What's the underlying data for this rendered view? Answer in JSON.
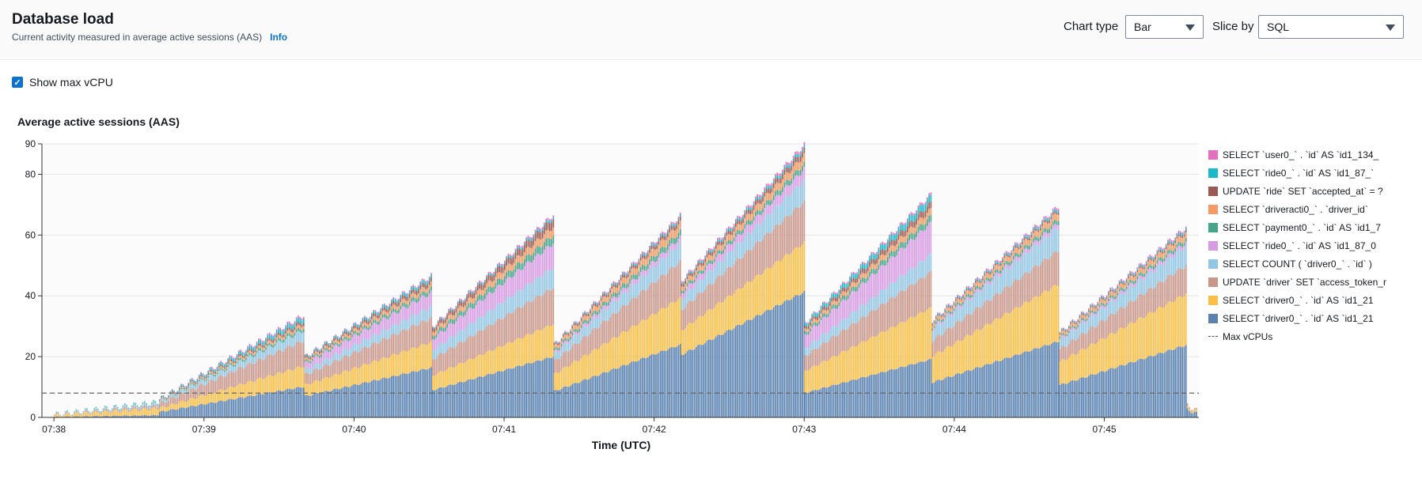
{
  "header": {
    "title": "Database load",
    "subtitle": "Current activity measured in average active sessions (AAS)",
    "info_link": "Info",
    "chart_type_label": "Chart type",
    "chart_type_value": "Bar",
    "slice_by_label": "Slice by",
    "slice_by_value": "SQL"
  },
  "options": {
    "show_max_vcpu_label": "Show max vCPU",
    "show_max_vcpu_checked": true
  },
  "colors": {
    "accent": "#0972d3",
    "max_vcpu_line": "#666666"
  },
  "chart_data": {
    "type": "bar",
    "stacked": true,
    "title": "Average active sessions (AAS)",
    "xlabel": "Time (UTC)",
    "ylabel": "",
    "ylim": [
      0,
      90
    ],
    "yticks": [
      0,
      20,
      40,
      60,
      80,
      90
    ],
    "xticks": [
      "07:38",
      "07:39",
      "07:40",
      "07:41",
      "07:42",
      "07:43",
      "07:44",
      "07:45"
    ],
    "xlim_minutes": [
      -0.08,
      7.63
    ],
    "grid": true,
    "legend_position": "right",
    "max_vcpus": 8,
    "max_vcpus_label": "Max vCPUs",
    "series": [
      {
        "name": "SELECT `driver0_` . `id` AS `id1_21",
        "color": "#5a82b0"
      },
      {
        "name": "SELECT `driver0_` . `id` AS `id1_21",
        "color": "#fbbf47"
      },
      {
        "name": "UPDATE `driver` SET `access_token_r",
        "color": "#c9968a"
      },
      {
        "name": "SELECT COUNT ( `driver0_` . `id` )",
        "color": "#92c6e3"
      },
      {
        "name": "SELECT `ride0_` . `id` AS `id1_87_0",
        "color": "#d69be3"
      },
      {
        "name": "SELECT `payment0_` . `id` AS `id1_7",
        "color": "#47a389"
      },
      {
        "name": "SELECT `driveracti0_` . `driver_id`",
        "color": "#f59a62"
      },
      {
        "name": "UPDATE `ride` SET `accepted_at` = ?",
        "color": "#9b5b55"
      },
      {
        "name": "SELECT `ride0_` . `id` AS `id1_87_`",
        "color": "#1bb9c9"
      },
      {
        "name": "SELECT `user0_` . `id` AS `id1_134_",
        "color": "#e36fbd"
      }
    ],
    "phases": [
      {
        "start": 0.0,
        "end": 0.7,
        "totals": [
          1,
          5
        ],
        "shares": [
          0.15,
          0.45,
          0.15,
          0.15,
          0.0,
          0.02,
          0.02,
          0.0,
          0.06,
          0.0
        ]
      },
      {
        "start": 0.7,
        "end": 1.67,
        "totals": [
          6,
          34
        ],
        "shares": [
          0.3,
          0.2,
          0.25,
          0.1,
          0.0,
          0.03,
          0.03,
          0.03,
          0.04,
          0.02
        ]
      },
      {
        "start": 1.67,
        "end": 2.52,
        "totals": [
          20,
          47
        ],
        "shares": [
          0.35,
          0.18,
          0.17,
          0.08,
          0.1,
          0.03,
          0.03,
          0.03,
          0.02,
          0.01
        ]
      },
      {
        "start": 2.52,
        "end": 3.33,
        "totals": [
          30,
          67
        ],
        "shares": [
          0.3,
          0.16,
          0.18,
          0.1,
          0.12,
          0.04,
          0.04,
          0.04,
          0.01,
          0.01
        ]
      },
      {
        "start": 3.33,
        "end": 4.18,
        "totals": [
          24,
          67
        ],
        "shares": [
          0.36,
          0.23,
          0.18,
          0.09,
          0.03,
          0.03,
          0.04,
          0.02,
          0.01,
          0.01
        ]
      },
      {
        "start": 4.18,
        "end": 5.0,
        "totals": [
          45,
          90
        ],
        "shares": [
          0.46,
          0.18,
          0.15,
          0.08,
          0.04,
          0.02,
          0.03,
          0.02,
          0.01,
          0.01
        ]
      },
      {
        "start": 5.0,
        "end": 5.85,
        "totals": [
          31,
          74
        ],
        "shares": [
          0.26,
          0.23,
          0.16,
          0.08,
          0.14,
          0.03,
          0.03,
          0.03,
          0.03,
          0.01
        ]
      },
      {
        "start": 5.85,
        "end": 6.7,
        "totals": [
          32,
          70
        ],
        "shares": [
          0.36,
          0.27,
          0.16,
          0.11,
          0.02,
          0.02,
          0.03,
          0.01,
          0.01,
          0.01
        ]
      },
      {
        "start": 6.7,
        "end": 7.55,
        "totals": [
          28,
          63
        ],
        "shares": [
          0.38,
          0.27,
          0.15,
          0.1,
          0.02,
          0.02,
          0.03,
          0.01,
          0.01,
          0.01
        ]
      },
      {
        "start": 7.55,
        "end": 7.62,
        "totals": [
          4,
          2
        ],
        "shares": [
          0.6,
          0.2,
          0.1,
          0.05,
          0.0,
          0.0,
          0.05,
          0.0,
          0.0,
          0.0
        ]
      }
    ]
  }
}
